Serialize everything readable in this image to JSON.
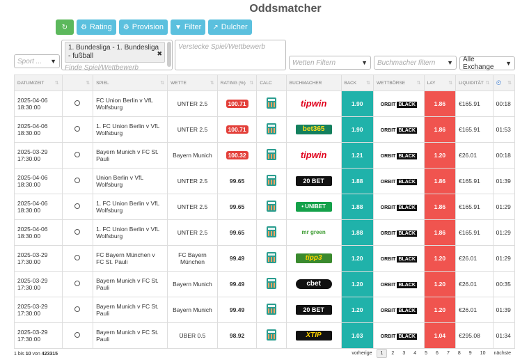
{
  "title": "Oddsmatcher",
  "toolbar": {
    "rating": "Rating",
    "provision": "Provision",
    "filter": "Filter",
    "dulcher": "Dulcher"
  },
  "filters": {
    "sport_placeholder": "Sport ...",
    "competition_tag": "1. Bundesliga - 1. Bundesliga - fußball",
    "competition_placeholder": "Finde Spiel/Wettbewerb",
    "hide_placeholder": "Verstecke Spiel/Wettbewerb",
    "bets_placeholder": "Wetten Filtern",
    "bookmaker_placeholder": "Buchmacher filtern",
    "exchange_value": "Alle Exchange"
  },
  "table": {
    "headers": [
      "DATUM/ZEIT",
      "",
      "SPIEL",
      "WETTE",
      "RATING (%)",
      "CALC",
      "BUCHMACHER",
      "BACK",
      "WETTBÖRSE",
      "LAY",
      "LIQUIDITÄT",
      ""
    ],
    "rows": [
      {
        "date": "2025-04-06",
        "time": "18:30:00",
        "game": "FC Union Berlin v VfL Wolfsburg",
        "bet": "UNTER 2.5",
        "rating": "100.71",
        "hi": true,
        "bookmaker": "tipwin",
        "back": "1.90",
        "exchange": "ORBIT",
        "exchange_b": "BLACK",
        "lay": "1.86",
        "liq": "€165.91",
        "t": "00:18"
      },
      {
        "date": "2025-04-06",
        "time": "18:30:00",
        "game": "1. FC Union Berlin v VfL Wolfsburg",
        "bet": "UNTER 2.5",
        "rating": "100.71",
        "hi": true,
        "bookmaker": "bet365",
        "back": "1.90",
        "exchange": "ORBIT",
        "exchange_b": "BLACK",
        "lay": "1.86",
        "liq": "€165.91",
        "t": "01:53"
      },
      {
        "date": "2025-03-29",
        "time": "17:30:00",
        "game": "Bayern Munich v FC St. Pauli",
        "bet": "Bayern Munich",
        "rating": "100.32",
        "hi": true,
        "bookmaker": "tipwin",
        "back": "1.21",
        "exchange": "ORBIT",
        "exchange_b": "BLACK",
        "lay": "1.20",
        "liq": "€26.01",
        "t": "00:18"
      },
      {
        "date": "2025-04-06",
        "time": "18:30:00",
        "game": "Union Berlin v VfL Wolfsburg",
        "bet": "UNTER 2.5",
        "rating": "99.65",
        "hi": false,
        "bookmaker": "20bet",
        "back": "1.88",
        "exchange": "ORBIT",
        "exchange_b": "BLACK",
        "lay": "1.86",
        "liq": "€165.91",
        "t": "01:39"
      },
      {
        "date": "2025-04-06",
        "time": "18:30:00",
        "game": "1. FC Union Berlin v VfL Wolfsburg",
        "bet": "UNTER 2.5",
        "rating": "99.65",
        "hi": false,
        "bookmaker": "unibet",
        "back": "1.88",
        "exchange": "ORBIT",
        "exchange_b": "BLACK",
        "lay": "1.86",
        "liq": "€165.91",
        "t": "01:29"
      },
      {
        "date": "2025-04-06",
        "time": "18:30:00",
        "game": "1. FC Union Berlin v VfL Wolfsburg",
        "bet": "UNTER 2.5",
        "rating": "99.65",
        "hi": false,
        "bookmaker": "mrgreen",
        "back": "1.88",
        "exchange": "ORBIT",
        "exchange_b": "BLACK",
        "lay": "1.86",
        "liq": "€165.91",
        "t": "01:29"
      },
      {
        "date": "2025-03-29",
        "time": "17:30:00",
        "game": "FC Bayern München v FC St. Pauli",
        "bet": "FC Bayern München",
        "rating": "99.49",
        "hi": false,
        "bookmaker": "tipp3",
        "back": "1.20",
        "exchange": "ORBIT",
        "exchange_b": "BLACK",
        "lay": "1.20",
        "liq": "€26.01",
        "t": "01:29"
      },
      {
        "date": "2025-03-29",
        "time": "17:30:00",
        "game": "Bayern Munich v FC St. Pauli",
        "bet": "Bayern Munich",
        "rating": "99.49",
        "hi": false,
        "bookmaker": "cbet",
        "back": "1.20",
        "exchange": "ORBIT",
        "exchange_b": "BLACK",
        "lay": "1.20",
        "liq": "€26.01",
        "t": "00:35"
      },
      {
        "date": "2025-03-29",
        "time": "17:30:00",
        "game": "Bayern Munich v FC St. Pauli",
        "bet": "Bayern Munich",
        "rating": "99.49",
        "hi": false,
        "bookmaker": "20bet",
        "back": "1.20",
        "exchange": "ORBIT",
        "exchange_b": "BLACK",
        "lay": "1.20",
        "liq": "€26.01",
        "t": "01:39"
      },
      {
        "date": "2025-03-29",
        "time": "17:30:00",
        "game": "Bayern Munich v FC St. Pauli",
        "bet": "ÜBER 0.5",
        "rating": "98.92",
        "hi": false,
        "bookmaker": "xtip",
        "back": "1.03",
        "exchange": "ORBIT",
        "exchange_b": "BLACK",
        "lay": "1.04",
        "liq": "€295.08",
        "t": "01:34"
      }
    ]
  },
  "bookmaker_labels": {
    "tipwin": "tipwin",
    "bet365": "bet365",
    "20bet": "20 BET",
    "unibet": "• UNIBET",
    "mrgreen": "mr green",
    "tipp3": "tipp3",
    "cbet": "cbet",
    "xtip": "XTIP"
  },
  "footer": {
    "info_prefix": "1 bis ",
    "info_count": "10",
    "info_mid": " von ",
    "info_total": "423315",
    "prev": "vorherige",
    "pages": [
      "1",
      "2",
      "3",
      "4",
      "5",
      "6",
      "7",
      "8",
      "9",
      "10"
    ],
    "next": "nächste"
  },
  "colors": {
    "back": "#20b2aa",
    "lay": "#f0544f",
    "refresh": "#5cb85c",
    "button": "#5bc0de"
  }
}
